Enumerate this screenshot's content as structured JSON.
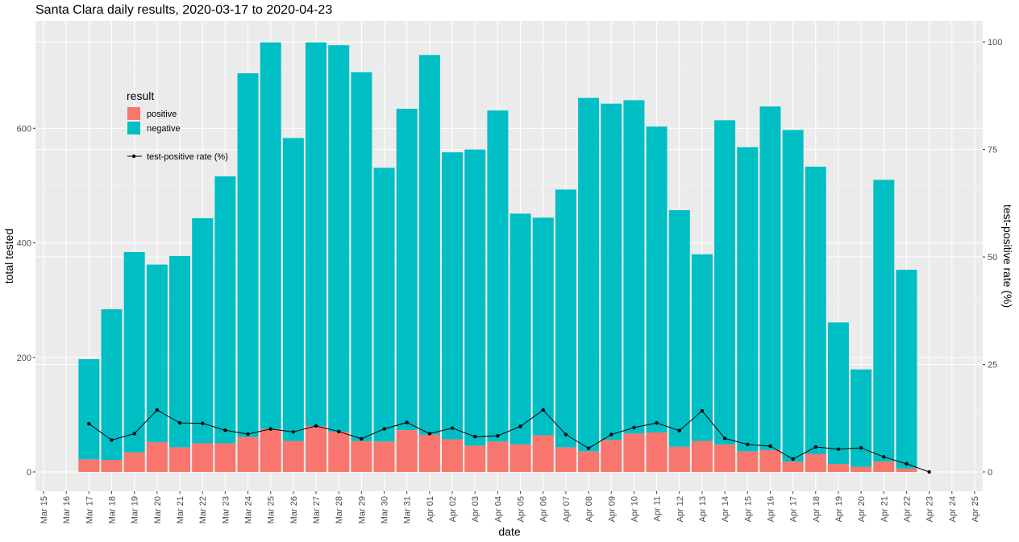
{
  "chart_data": {
    "type": "bar",
    "title": "Santa Clara daily results, 2020-03-17 to 2020-04-23",
    "xlabel": "date",
    "ylabel": "total tested",
    "y2label": "test-positive rate (%)",
    "ylim": [
      0,
      750
    ],
    "y2lim": [
      0,
      100
    ],
    "y_ticks": [
      "0",
      "200",
      "400",
      "600"
    ],
    "y2_ticks": [
      "0",
      "25",
      "50",
      "75",
      "100"
    ],
    "date_ticks": [
      "Mar 15",
      "Mar 16",
      "Mar 17",
      "Mar 18",
      "Mar 19",
      "Mar 20",
      "Mar 21",
      "Mar 22",
      "Mar 23",
      "Mar 24",
      "Mar 25",
      "Mar 26",
      "Mar 27",
      "Mar 28",
      "Mar 29",
      "Mar 30",
      "Mar 31",
      "Apr 01",
      "Apr 02",
      "Apr 03",
      "Apr 04",
      "Apr 05",
      "Apr 06",
      "Apr 07",
      "Apr 08",
      "Apr 09",
      "Apr 10",
      "Apr 11",
      "Apr 12",
      "Apr 13",
      "Apr 14",
      "Apr 15",
      "Apr 16",
      "Apr 17",
      "Apr 18",
      "Apr 19",
      "Apr 20",
      "Apr 21",
      "Apr 22",
      "Apr 23",
      "Apr 24",
      "Apr 25"
    ],
    "categories": [
      "Mar 17",
      "Mar 18",
      "Mar 19",
      "Mar 20",
      "Mar 21",
      "Mar 22",
      "Mar 23",
      "Mar 24",
      "Mar 25",
      "Mar 26",
      "Mar 27",
      "Mar 28",
      "Mar 29",
      "Mar 30",
      "Mar 31",
      "Apr 01",
      "Apr 02",
      "Apr 03",
      "Apr 04",
      "Apr 05",
      "Apr 06",
      "Apr 07",
      "Apr 08",
      "Apr 09",
      "Apr 10",
      "Apr 11",
      "Apr 12",
      "Apr 13",
      "Apr 14",
      "Apr 15",
      "Apr 16",
      "Apr 17",
      "Apr 18",
      "Apr 19",
      "Apr 20",
      "Apr 21",
      "Apr 22",
      "Apr 23"
    ],
    "series": [
      {
        "name": "positive",
        "color": "#F8766D",
        "values": [
          22,
          21,
          34,
          52,
          43,
          50,
          50,
          61,
          75,
          54,
          80,
          70,
          54,
          53,
          73,
          65,
          57,
          46,
          53,
          48,
          64,
          43,
          36,
          56,
          67,
          69,
          44,
          54,
          48,
          36,
          38,
          18,
          31,
          14,
          9,
          18,
          6,
          0
        ]
      },
      {
        "name": "negative",
        "color": "#00BFC4",
        "values": [
          175,
          263,
          350,
          310,
          334,
          393,
          466,
          635,
          675,
          529,
          670,
          675,
          644,
          478,
          561,
          663,
          501,
          517,
          578,
          403,
          380,
          450,
          617,
          587,
          582,
          534,
          413,
          326,
          566,
          531,
          600,
          579,
          502,
          247,
          170,
          492,
          347,
          0
        ]
      }
    ],
    "rate_series": {
      "name": "test-positive rate (%)",
      "color": "#000000",
      "values": [
        11.2,
        7.4,
        8.9,
        14.4,
        11.4,
        11.3,
        9.7,
        8.8,
        10.0,
        9.3,
        10.7,
        9.4,
        7.7,
        10.0,
        11.5,
        8.9,
        10.2,
        8.2,
        8.4,
        10.6,
        14.4,
        8.7,
        5.5,
        8.7,
        10.3,
        11.4,
        9.6,
        14.2,
        7.8,
        6.4,
        6.0,
        3.0,
        5.8,
        5.3,
        5.6,
        3.5,
        1.9,
        0.0
      ]
    },
    "legend": {
      "title": "result",
      "items": [
        {
          "label": "positive",
          "color": "#F8766D"
        },
        {
          "label": "negative",
          "color": "#00BFC4"
        }
      ],
      "line_label": "test-positive rate (%)"
    }
  }
}
